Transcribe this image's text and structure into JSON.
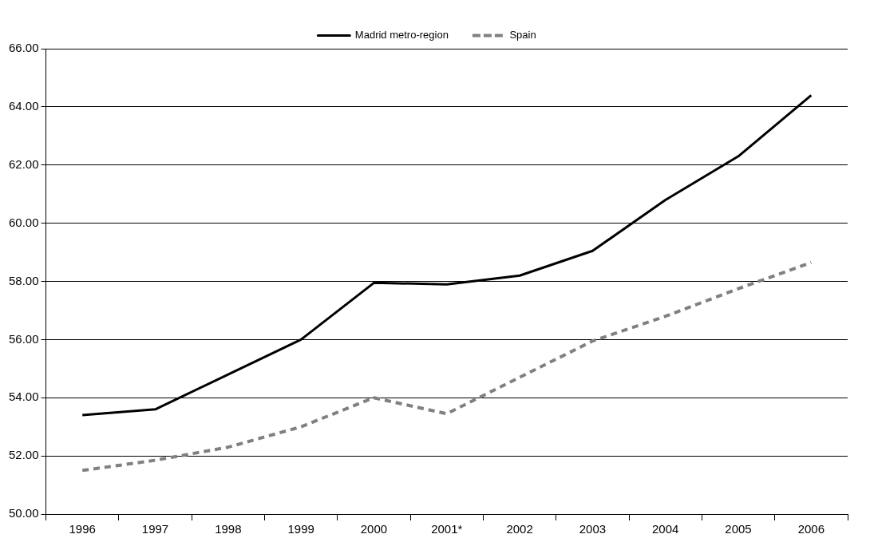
{
  "chart_data": {
    "type": "line",
    "categories": [
      "1996",
      "1997",
      "1998",
      "1999",
      "2000",
      "2001*",
      "2002",
      "2003",
      "2004",
      "2005",
      "2006"
    ],
    "series": [
      {
        "name": "Madrid metro-region",
        "color": "#000000",
        "line_style": "solid",
        "values": [
          53.4,
          53.6,
          54.8,
          56.0,
          57.95,
          57.9,
          58.2,
          59.05,
          60.8,
          62.3,
          64.4
        ]
      },
      {
        "name": "Spain",
        "color": "#808080",
        "line_style": "dashed",
        "values": [
          51.5,
          51.85,
          52.3,
          53.0,
          54.0,
          53.45,
          54.7,
          55.95,
          56.8,
          57.75,
          58.65
        ]
      }
    ],
    "ylim": [
      50,
      66
    ],
    "yticks": [
      {
        "value": 50,
        "label": "50.00"
      },
      {
        "value": 52,
        "label": "52.00"
      },
      {
        "value": 54,
        "label": "54.00"
      },
      {
        "value": 56,
        "label": "56.00"
      },
      {
        "value": 58,
        "label": "58.00"
      },
      {
        "value": 60,
        "label": "60.00"
      },
      {
        "value": 62,
        "label": "62.00"
      },
      {
        "value": 64,
        "label": "64.00"
      },
      {
        "value": 66,
        "label": "66.00"
      }
    ],
    "grid": "y",
    "legend": "top",
    "marker": "none"
  }
}
